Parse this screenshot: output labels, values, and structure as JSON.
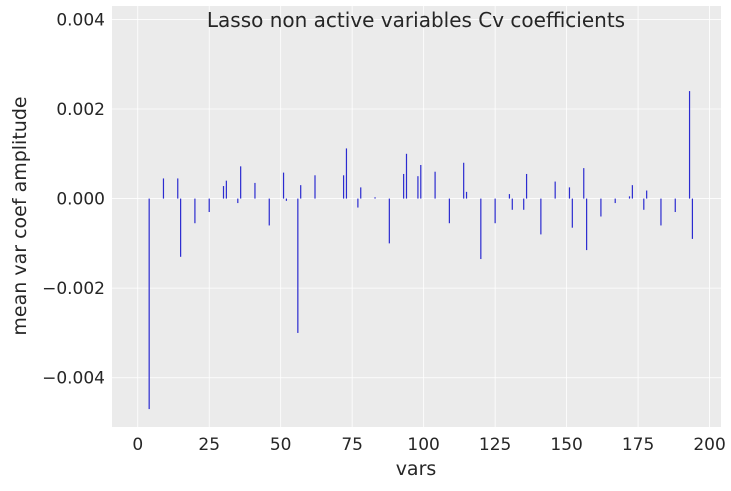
{
  "chart_data": {
    "type": "bar",
    "title": "Lasso non active variables Cv coefficients",
    "xlabel": "vars",
    "ylabel": "mean var coef amplitude",
    "xlim": [
      -9,
      204
    ],
    "ylim": [
      -0.0051,
      0.0043
    ],
    "xticks": [
      0,
      25,
      50,
      75,
      100,
      125,
      150,
      175,
      200
    ],
    "xtick_labels": [
      "0",
      "25",
      "50",
      "75",
      "100",
      "125",
      "150",
      "175",
      "200"
    ],
    "yticks": [
      -0.004,
      -0.002,
      0.0,
      0.002,
      0.004
    ],
    "ytick_labels": [
      "−0.004",
      "−0.002",
      "0.000",
      "0.002",
      "0.004"
    ],
    "grid": true,
    "bar_color": "#2b2bd0",
    "background_color": "#ebebeb",
    "grid_color": "#ffffff",
    "x": [
      4,
      9,
      14,
      15,
      20,
      25,
      30,
      31,
      35,
      36,
      41,
      46,
      51,
      52,
      56,
      57,
      62,
      72,
      73,
      77,
      78,
      83,
      88,
      93,
      94,
      98,
      99,
      104,
      109,
      114,
      115,
      120,
      125,
      130,
      131,
      135,
      136,
      141,
      146,
      151,
      152,
      156,
      157,
      162,
      167,
      172,
      173,
      177,
      178,
      183,
      188,
      193,
      194
    ],
    "values": [
      -0.0047,
      0.00045,
      0.00045,
      -0.0013,
      -0.00055,
      -0.0003,
      0.00028,
      0.0004,
      -0.0001,
      0.00072,
      0.00035,
      -0.0006,
      0.00058,
      -5e-05,
      -0.003,
      0.0003,
      0.00052,
      0.00052,
      0.00112,
      -0.0002,
      0.00025,
      3e-05,
      -0.001,
      0.00055,
      0.001,
      0.0005,
      0.00075,
      0.0006,
      -0.00055,
      0.0008,
      0.00015,
      -0.00135,
      -0.00055,
      0.0001,
      -0.00025,
      -0.00025,
      0.00055,
      -0.0008,
      0.00038,
      0.00025,
      -0.00065,
      0.00068,
      -0.00115,
      -0.0004,
      -0.0001,
      5e-05,
      0.0003,
      -0.00025,
      0.00018,
      -0.0006,
      -0.0003,
      0.0024,
      -0.0009
    ]
  }
}
